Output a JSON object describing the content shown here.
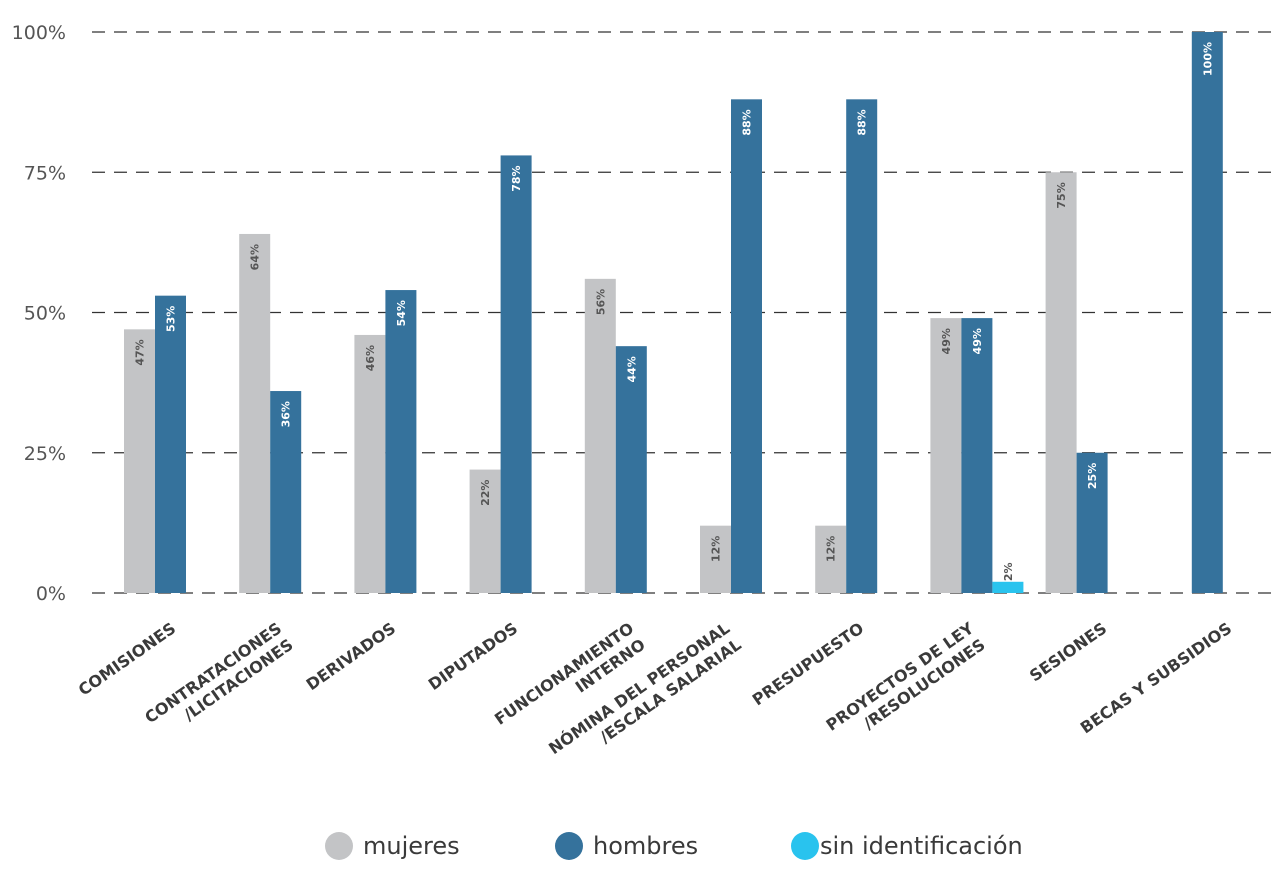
{
  "chart_data": {
    "type": "bar",
    "categories": [
      [
        "COMISIONES"
      ],
      [
        "CONTRATACIONES",
        "/LICITACIONES"
      ],
      [
        "DERIVADOS"
      ],
      [
        "DIPUTADOS"
      ],
      [
        "FUNCIONAMIENTO",
        "INTERNO"
      ],
      [
        "NÓMINA DEL PERSONAL",
        "/ESCALA SALARIAL"
      ],
      [
        "PRESUPUESTO"
      ],
      [
        "PROYECTOS DE LEY",
        "/RESOLUCIONES"
      ],
      [
        "SESIONES"
      ],
      [
        "BECAS Y SUBSIDIOS"
      ]
    ],
    "series": [
      {
        "name": "mujeres",
        "color": "#c3c4c6",
        "label_color": "#555555",
        "values": [
          47,
          64,
          46,
          22,
          56,
          12,
          12,
          49,
          75,
          null
        ],
        "labels": [
          "47%",
          "64%",
          "46%",
          "22%",
          "56%",
          "12%",
          "12%",
          "49%",
          "75%",
          ""
        ]
      },
      {
        "name": "hombres",
        "color": "#35729c",
        "label_color": "#ffffff",
        "values": [
          53,
          36,
          54,
          78,
          44,
          88,
          88,
          49,
          25,
          100
        ],
        "labels": [
          "53%",
          "36%",
          "54%",
          "78%",
          "44%",
          "88%",
          "88%",
          "49%",
          "25%",
          "100%"
        ]
      },
      {
        "name": "sin identificación",
        "color": "#29c3ee",
        "label_color": "#555555",
        "values": [
          null,
          null,
          null,
          null,
          null,
          null,
          null,
          2,
          null,
          null
        ],
        "labels": [
          "",
          "",
          "",
          "",
          "",
          "",
          "",
          "2%",
          "",
          ""
        ]
      }
    ],
    "y_ticks": [
      0,
      25,
      50,
      75,
      100
    ],
    "y_tick_labels": [
      "0%",
      "25%",
      "50%",
      "75%",
      "100%"
    ],
    "ylim": [
      0,
      100
    ],
    "grid": "dashed horizontal",
    "legend_position": "bottom-center"
  }
}
